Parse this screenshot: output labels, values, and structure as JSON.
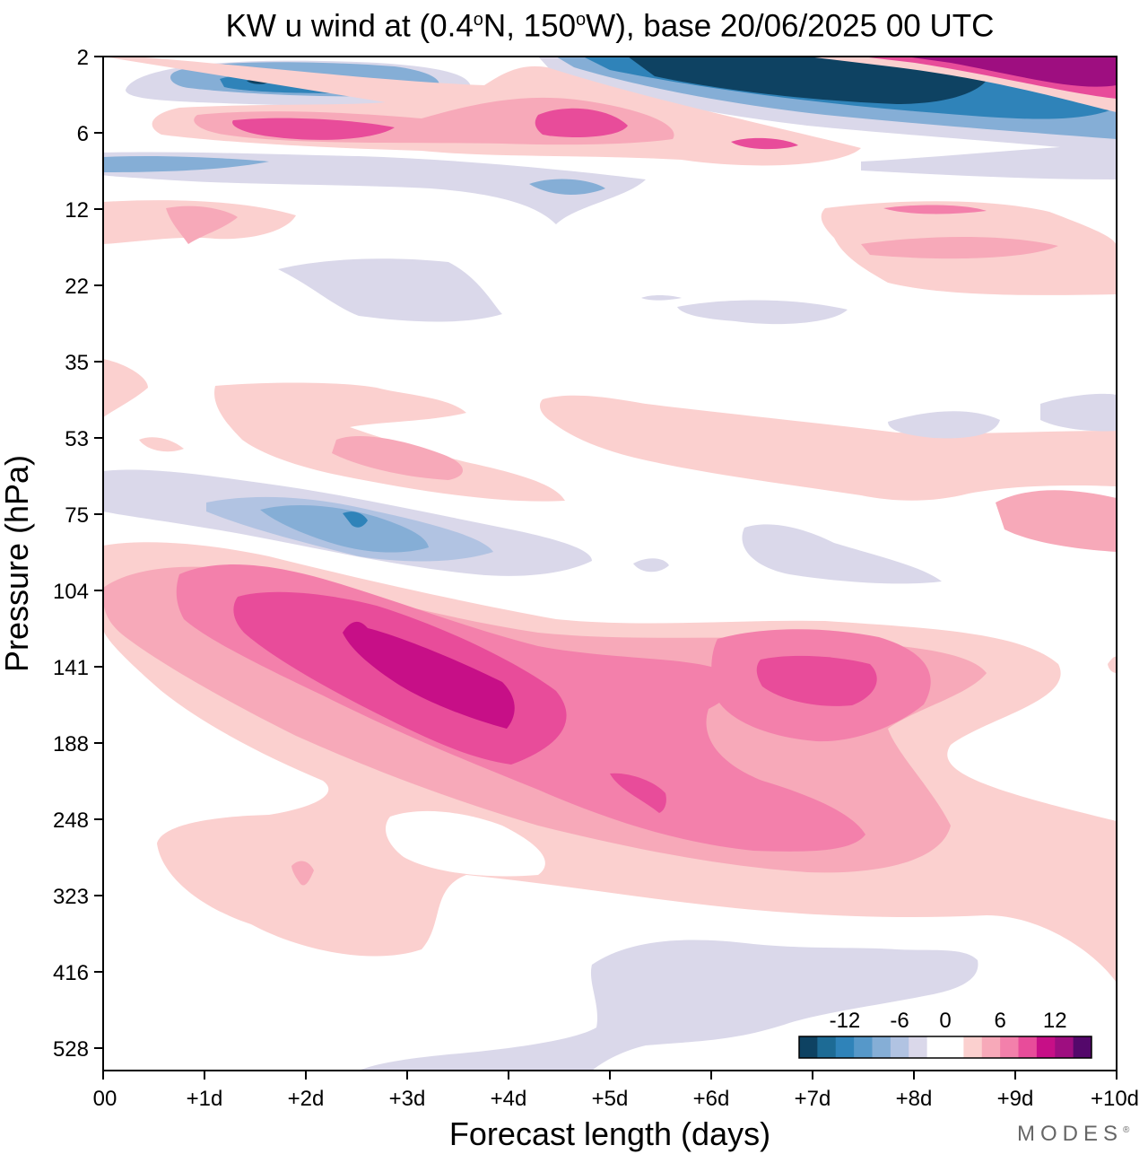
{
  "chart_data": {
    "type": "heatmap",
    "title": "KW u wind at (0.4°N, 150°W),  base 20/06/2025  00 UTC",
    "title_parts": {
      "prefix": "KW u wind at (0.4",
      "deg1": "o",
      "mid": "N, 150",
      "deg2": "o",
      "suffix": "W),  base 20/06/2025  00 UTC"
    },
    "xlabel": "Forecast length (days)",
    "ylabel": "Pressure (hPa)",
    "x_ticks": [
      "00",
      "+1d",
      "+2d",
      "+3d",
      "+4d",
      "+5d",
      "+6d",
      "+7d",
      "+8d",
      "+9d",
      "+10d"
    ],
    "xlim": [
      0,
      10
    ],
    "y_ticks": [
      "2",
      "6",
      "12",
      "22",
      "35",
      "53",
      "75",
      "104",
      "141",
      "188",
      "248",
      "323",
      "416",
      "528"
    ],
    "y_scale": "categorical pressure levels (log-like), top = 2 hPa",
    "colorbar": {
      "tick_labels": [
        "-12",
        "-6",
        "0",
        "6",
        "12"
      ],
      "levels": [
        -16,
        -14,
        -12,
        -10,
        -8,
        -6,
        -4,
        -2,
        0,
        2,
        4,
        6,
        8,
        10,
        12,
        14,
        16
      ],
      "colors": [
        "#0e4262",
        "#1d6b95",
        "#2f83b9",
        "#5698c9",
        "#85aed6",
        "#b1c3e2",
        "#dad8ea",
        "#ffffff",
        "#ffffff",
        "#fbd0cf",
        "#f7a9b9",
        "#f380ab",
        "#e84c9a",
        "#c70f87",
        "#9e0e80",
        "#54086b"
      ],
      "placement": "bottom-right inside plot"
    },
    "brand": "MODES",
    "brand_mark": "®"
  }
}
